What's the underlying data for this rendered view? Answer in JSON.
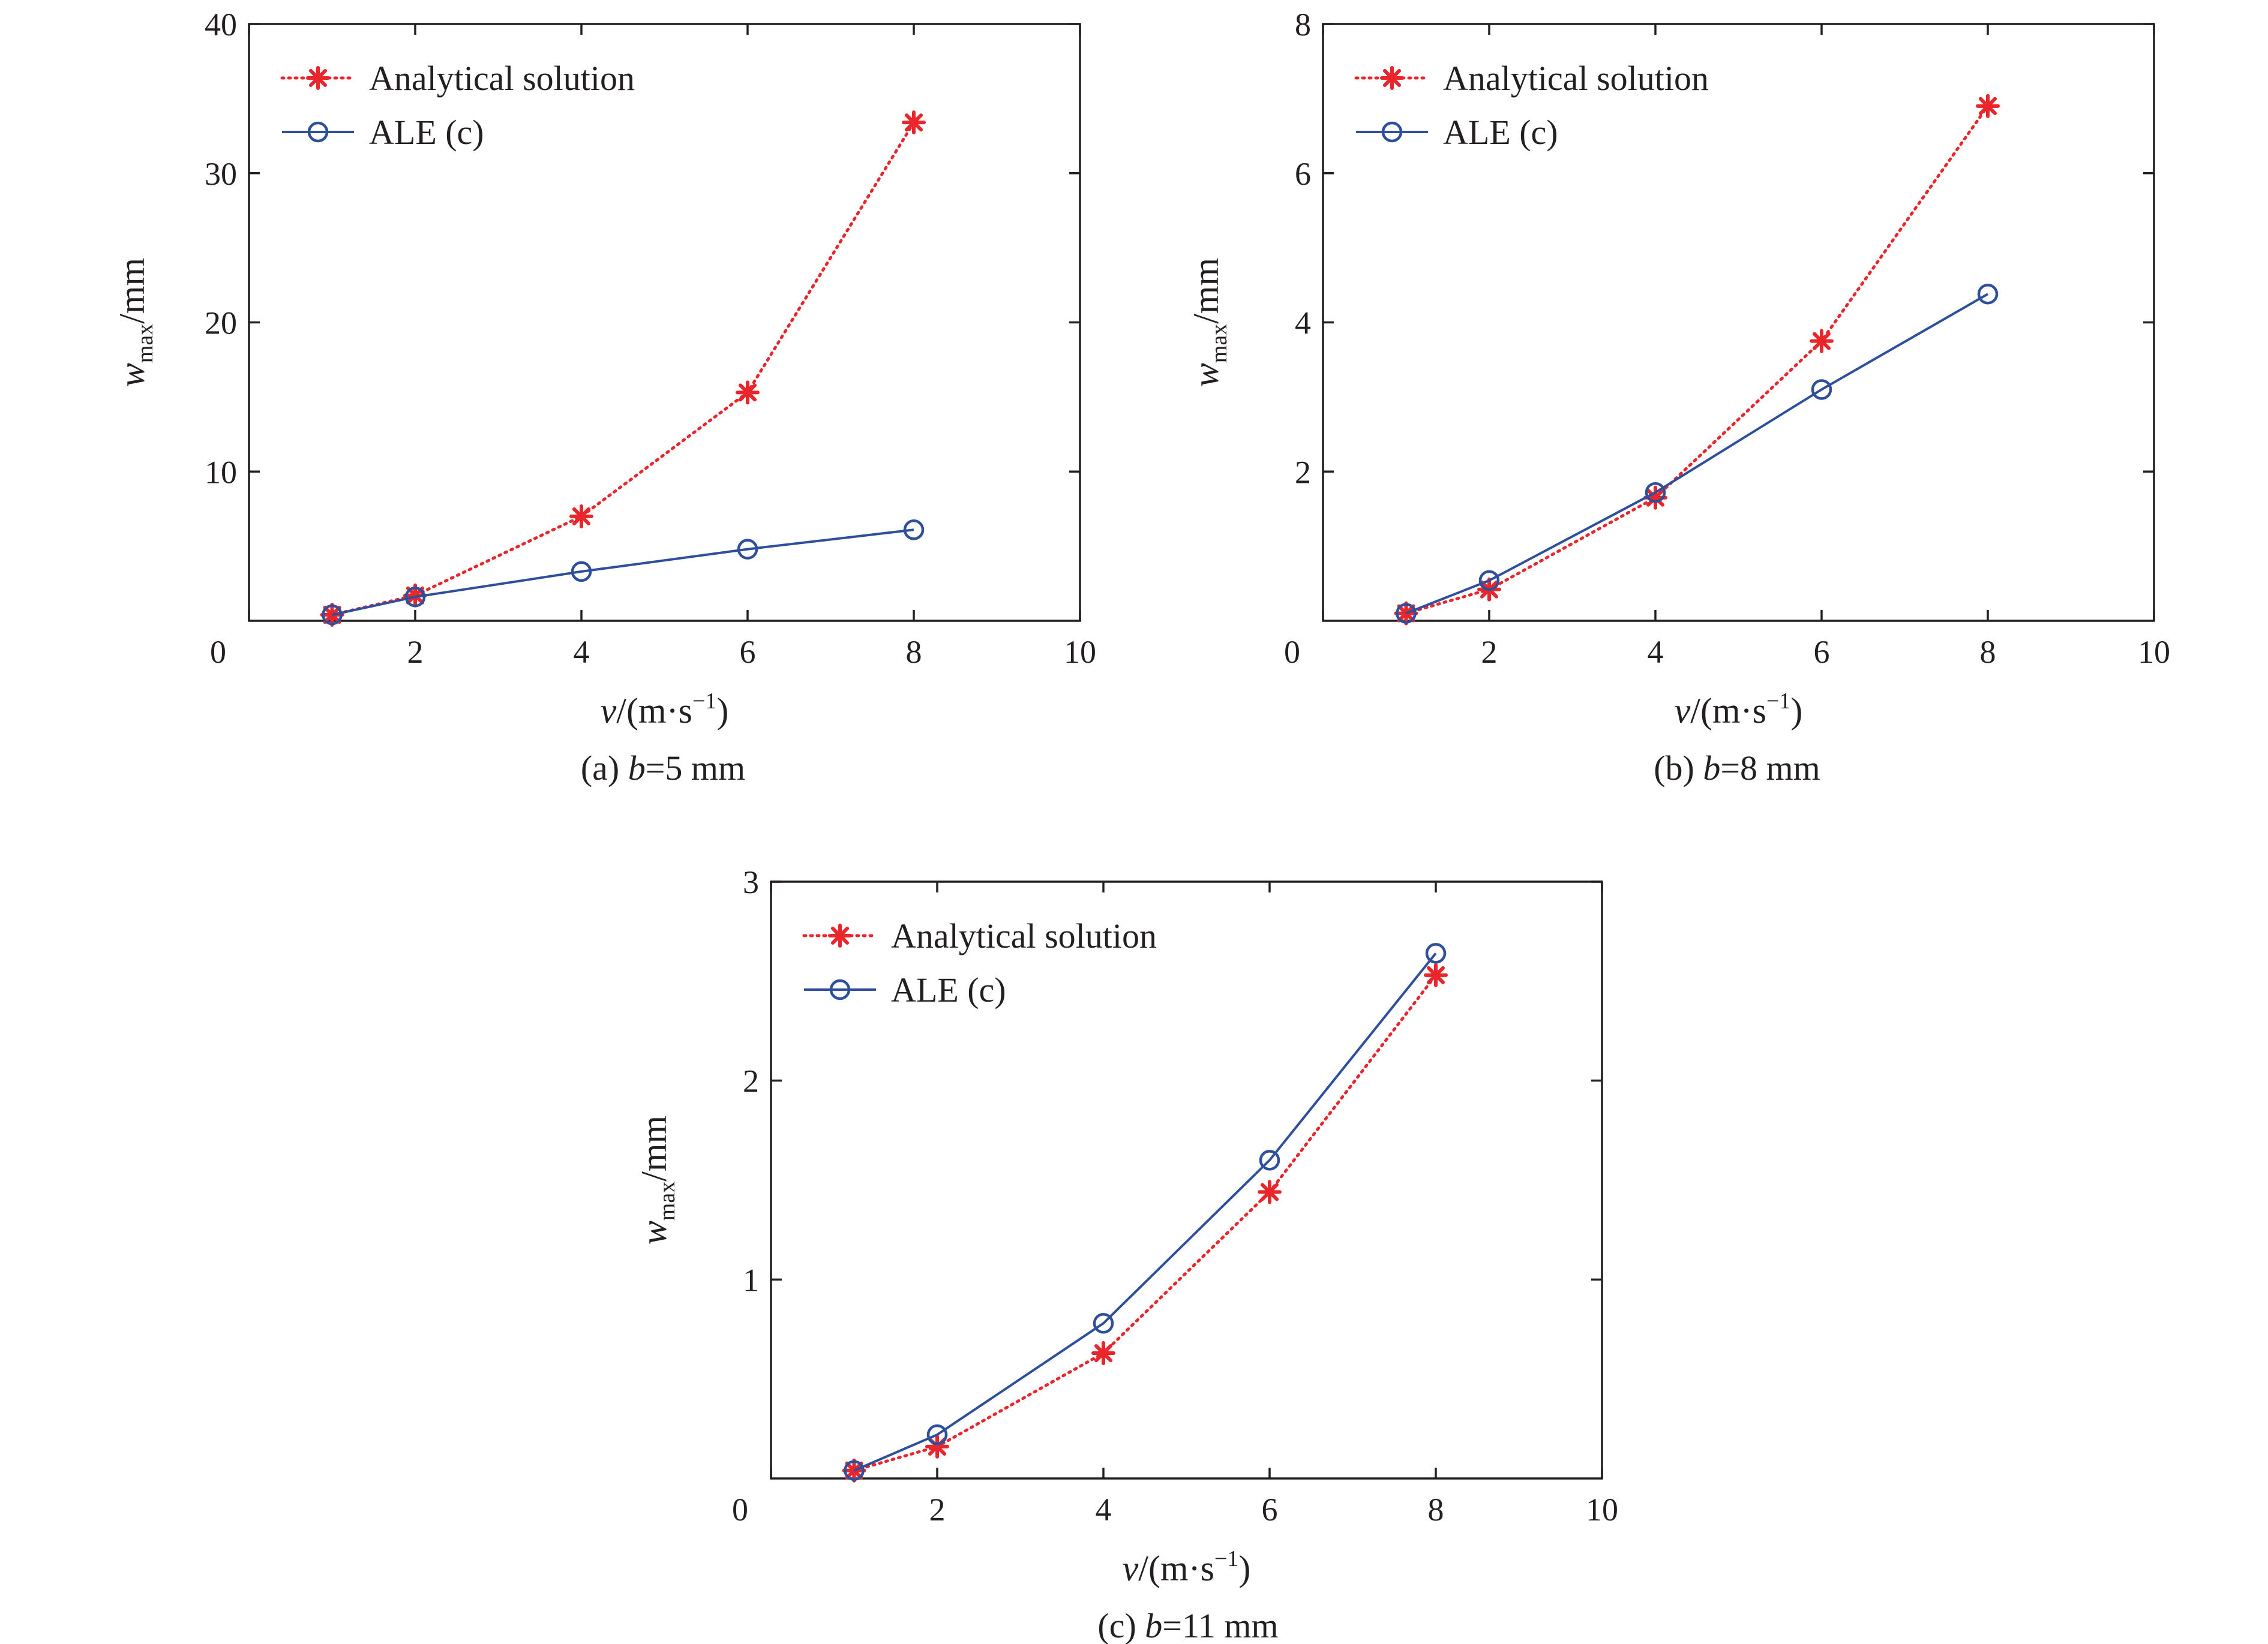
{
  "chart_data": [
    {
      "type": "line",
      "caption_prefix": "(a) ",
      "caption_var": "b",
      "caption_value": "=5 mm",
      "xlabel_var": "v",
      "xlabel_unit": "/(m·s",
      "xlabel_exp": "−1",
      "xlabel_close": ")",
      "ylabel_var": "w",
      "ylabel_sub": "max",
      "ylabel_unit": "/mm",
      "xlim": [
        0,
        10
      ],
      "ylim": [
        0,
        40
      ],
      "xticks": [
        0,
        2,
        4,
        6,
        8,
        10
      ],
      "yticks": [
        10,
        20,
        30,
        40
      ],
      "legend_position": "top-left",
      "grid": false,
      "x": [
        1,
        2,
        4,
        6,
        8
      ],
      "series": [
        {
          "name": "Analytical solution",
          "values": [
            0.4,
            1.7,
            7.0,
            15.3,
            33.4
          ],
          "color": "#e8262b",
          "marker": "star",
          "line": "dotted"
        },
        {
          "name": "ALE (c)",
          "values": [
            0.4,
            1.6,
            3.3,
            4.8,
            6.1
          ],
          "color": "#2e4f9c",
          "marker": "circle",
          "line": "solid"
        }
      ]
    },
    {
      "type": "line",
      "caption_prefix": "(b) ",
      "caption_var": "b",
      "caption_value": "=8 mm",
      "xlabel_var": "v",
      "xlabel_unit": "/(m·s",
      "xlabel_exp": "−1",
      "xlabel_close": ")",
      "ylabel_var": "w",
      "ylabel_sub": "max",
      "ylabel_unit": "/mm",
      "xlim": [
        0,
        10
      ],
      "ylim": [
        0,
        8
      ],
      "xticks": [
        0,
        2,
        4,
        6,
        8,
        10
      ],
      "yticks": [
        2,
        4,
        6,
        8
      ],
      "legend_position": "top-left",
      "grid": false,
      "x": [
        1,
        2,
        4,
        6,
        8
      ],
      "series": [
        {
          "name": "Analytical solution",
          "values": [
            0.1,
            0.42,
            1.65,
            3.75,
            6.9
          ],
          "color": "#e8262b",
          "marker": "star",
          "line": "dotted"
        },
        {
          "name": "ALE (c)",
          "values": [
            0.1,
            0.54,
            1.72,
            3.1,
            4.38
          ],
          "color": "#2e4f9c",
          "marker": "circle",
          "line": "solid"
        }
      ]
    },
    {
      "type": "line",
      "caption_prefix": "(c) ",
      "caption_var": "b",
      "caption_value": "=11 mm",
      "xlabel_var": "v",
      "xlabel_unit": "/(m·s",
      "xlabel_exp": "−1",
      "xlabel_close": ")",
      "ylabel_var": "w",
      "ylabel_sub": "max",
      "ylabel_unit": "/mm",
      "xlim": [
        0,
        10
      ],
      "ylim": [
        0,
        3
      ],
      "xticks": [
        0,
        2,
        4,
        6,
        8,
        10
      ],
      "yticks": [
        1,
        2,
        3
      ],
      "legend_position": "top-left",
      "grid": false,
      "x": [
        1,
        2,
        4,
        6,
        8
      ],
      "series": [
        {
          "name": "Analytical solution",
          "values": [
            0.04,
            0.16,
            0.63,
            1.44,
            2.53
          ],
          "color": "#e8262b",
          "marker": "star",
          "line": "dotted"
        },
        {
          "name": "ALE (c)",
          "values": [
            0.04,
            0.22,
            0.78,
            1.6,
            2.64
          ],
          "color": "#2e4f9c",
          "marker": "circle",
          "line": "solid"
        }
      ]
    }
  ]
}
